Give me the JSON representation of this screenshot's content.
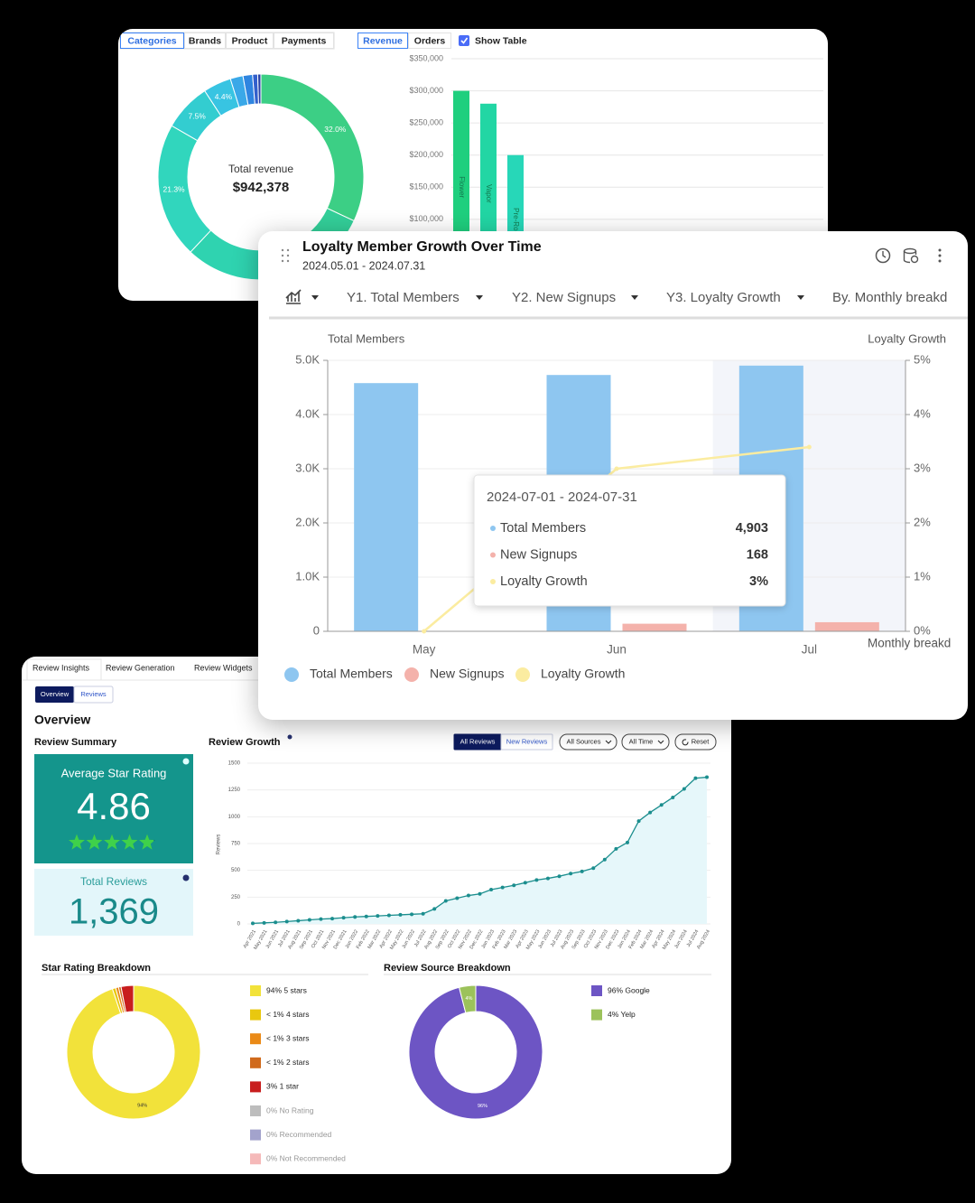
{
  "revenue_panel": {
    "dimension_tabs": [
      "Categories",
      "Brands",
      "Product",
      "Payments"
    ],
    "metric_tabs": [
      "Revenue",
      "Orders"
    ],
    "show_table": "Show Table"
  },
  "loyalty_panel": {
    "title": "Loyalty Member Growth Over Time",
    "subtitle": "2024.05.01 - 2024.07.31",
    "controls": [
      "Y1. Total Members",
      "Y2. New Signups",
      "Y3. Loyalty Growth",
      "By. Monthly breakd"
    ],
    "tooltip": {
      "title": "2024-07-01 - 2024-07-31",
      "values": [
        "4,903",
        "168",
        "3%"
      ]
    }
  },
  "reviews_panel": {
    "tabs": [
      "Review Insights",
      "Review Generation",
      "Review Widgets"
    ],
    "subtabs": [
      "Overview",
      "Reviews"
    ],
    "heading": "Overview",
    "summary_title": "Review Summary",
    "average_label": "Average Star Rating",
    "average_rating": 4.86,
    "total_label": "Total Reviews",
    "total_reviews": "1,369",
    "filters": [
      "All Reviews",
      "New Reviews",
      "All Sources",
      "All Time",
      "Reset"
    ]
  },
  "chart_data": [
    {
      "type": "donut",
      "center_label": "Total revenue",
      "center_value": "$942,378",
      "values": [
        32.0,
        18.0,
        12.0,
        21.3,
        7.5,
        4.4,
        2.0,
        1.5,
        0.8,
        0.5
      ],
      "value_labels": [
        "32.0%",
        null,
        null,
        "21.3%",
        "7.5%",
        "4.4%",
        null,
        null,
        null,
        null
      ],
      "colors": [
        "#3ccf85",
        "#33cf99",
        "#2fd3b0",
        "#31d6bd",
        "#33cdd0",
        "#38c4e2",
        "#3aa8e8",
        "#2f85e0",
        "#3360cc",
        "#2b44a8"
      ]
    },
    {
      "type": "bar",
      "categories": [
        "Flower",
        "Vapor",
        "Pre-Ro"
      ],
      "values": [
        300000,
        280000,
        200000
      ],
      "colors": [
        "#1fcf7e",
        "#22d6a4",
        "#27d7b8"
      ],
      "ylim": [
        0,
        350000
      ],
      "yticks": [
        {
          "value": 100000,
          "label": "$100,000"
        },
        {
          "value": 150000,
          "label": "$150,000"
        },
        {
          "value": 200000,
          "label": "$200,000"
        },
        {
          "value": 250000,
          "label": "$250,000"
        },
        {
          "value": 300000,
          "label": "$300,000"
        },
        {
          "value": 350000,
          "label": "$350,000"
        }
      ],
      "grid": true
    },
    {
      "type": "combo",
      "categories": [
        "May",
        "Jun",
        "Jul"
      ],
      "y_label": "Total Members",
      "y2_label": "Loyalty Growth",
      "x_label": "Monthly breakd",
      "series": [
        {
          "name": "Total Members",
          "type": "bar",
          "color": "#8ec6f0",
          "values": [
            4580,
            4730,
            4903
          ]
        },
        {
          "name": "New Signups",
          "type": "bar",
          "color": "#f4b2ab",
          "values": [
            0,
            140,
            168
          ]
        },
        {
          "name": "Loyalty Growth",
          "type": "line",
          "axis": "y2",
          "color": "#fbeca0",
          "values": [
            0,
            3.0,
            3.4
          ]
        }
      ],
      "ylim": [
        0,
        5000
      ],
      "yticks": [
        0,
        {
          "value": 1000,
          "label": "1.0K"
        },
        {
          "value": 2000,
          "label": "2.0K"
        },
        {
          "value": 3000,
          "label": "3.0K"
        },
        {
          "value": 4000,
          "label": "4.0K"
        },
        {
          "value": 5000,
          "label": "5.0K"
        }
      ],
      "y2lim": [
        0,
        5
      ],
      "y2ticks": [
        {
          "value": 0,
          "label": "0%"
        },
        {
          "value": 1,
          "label": "1%"
        },
        {
          "value": 2,
          "label": "2%"
        },
        {
          "value": 3,
          "label": "3%"
        },
        {
          "value": 4,
          "label": "4%"
        },
        {
          "value": 5,
          "label": "5%"
        }
      ],
      "grid": true
    },
    {
      "type": "line",
      "title": "Review Growth",
      "y_label": "Reviews",
      "x": [
        "Apr 2021",
        "May 2021",
        "Jun 2021",
        "Jul 2021",
        "Aug 2021",
        "Sep 2021",
        "Oct 2021",
        "Nov 2021",
        "Dec 2021",
        "Jan 2022",
        "Feb 2022",
        "Mar 2022",
        "Apr 2022",
        "May 2022",
        "Jun 2022",
        "Jul 2022",
        "Aug 2022",
        "Sep 2022",
        "Oct 2022",
        "Nov 2022",
        "Dec 2022",
        "Jan 2023",
        "Feb 2023",
        "Mar 2023",
        "Apr 2023",
        "May 2023",
        "Jun 2023",
        "Jul 2023",
        "Aug 2023",
        "Sep 2023",
        "Oct 2023",
        "Nov 2023",
        "Dec 2023",
        "Jan 2024",
        "Feb 2024",
        "Mar 2024",
        "Apr 2024",
        "May 2024",
        "Jun 2024",
        "Jul 2024",
        "Aug 2024"
      ],
      "values": [
        5,
        10,
        15,
        22,
        30,
        38,
        45,
        50,
        58,
        65,
        70,
        75,
        80,
        85,
        90,
        95,
        140,
        215,
        240,
        265,
        280,
        320,
        340,
        360,
        385,
        410,
        425,
        445,
        470,
        490,
        520,
        600,
        700,
        760,
        960,
        1040,
        1110,
        1180,
        1260,
        1360,
        1369
      ],
      "color": "#1b8e8e",
      "area_color": "#e6f7fa",
      "ylim": [
        0,
        1500
      ],
      "yticks": [
        0,
        250,
        500,
        750,
        1000,
        1250,
        1500
      ],
      "grid": true
    },
    {
      "type": "donut",
      "title": "Star Rating Breakdown",
      "categories": [
        "94% 5 stars",
        "< 1% 4 stars",
        "< 1% 3 stars",
        "< 1% 2 stars",
        "3% 1 star",
        "0% No Rating",
        "0% Recommended",
        "0% Not Recommended"
      ],
      "values": [
        94,
        0.8,
        0.7,
        0.6,
        3,
        0,
        0,
        0
      ],
      "value_labels": [
        "94%",
        null,
        null,
        null,
        null,
        null,
        null,
        null
      ],
      "colors": [
        "#f2e23a",
        "#e9c80f",
        "#ea8a17",
        "#d06a1c",
        "#c81e1e",
        "#bdbdbd",
        "#a3a3cc",
        "#f5b9b9"
      ]
    },
    {
      "type": "donut",
      "title": "Review Source Breakdown",
      "categories": [
        "96% Google",
        "4% Yelp"
      ],
      "values": [
        96,
        4
      ],
      "value_labels": [
        "96%",
        "4%"
      ],
      "colors": [
        "#6d55c4",
        "#9cc25b"
      ]
    }
  ]
}
